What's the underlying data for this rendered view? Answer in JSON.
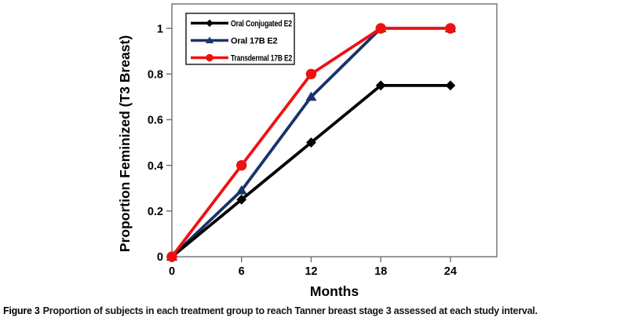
{
  "figure": {
    "caption_label": "Figure 3",
    "caption_text": "Proportion of subjects in each treatment group to reach Tanner breast stage 3 assessed at each study interval."
  },
  "chart_data": {
    "type": "line",
    "title": "",
    "xlabel": "Months",
    "ylabel": "Proportion Feminized (T3 Breast)",
    "x": [
      0,
      6,
      12,
      18,
      24
    ],
    "xtick_labels": [
      "0",
      "6",
      "12",
      "18",
      "24"
    ],
    "ytick_values": [
      0,
      0.2,
      0.4,
      0.6,
      0.8,
      1
    ],
    "ytick_labels": [
      "0",
      "0.2",
      "0.4",
      "0.6",
      "0.8",
      "1"
    ],
    "xlim": [
      0,
      28
    ],
    "ylim": [
      0,
      1.107
    ],
    "grid": false,
    "legend_position": "top-left",
    "legend_border": true,
    "draw_order": [
      1,
      0,
      2
    ],
    "series": [
      {
        "name": "Oral Conjugated E2",
        "color": "#000000",
        "marker": "diamond",
        "values": [
          0,
          0.25,
          0.5,
          0.75,
          0.75
        ]
      },
      {
        "name": "Oral 17B E2",
        "color": "#18336A",
        "marker": "triangle-up",
        "values": [
          0,
          0.29,
          0.7,
          1.0,
          1.0
        ]
      },
      {
        "name": "Transdermal 17B E2",
        "color": "#EE1111",
        "marker": "circle",
        "values": [
          0,
          0.4,
          0.8,
          1.0,
          1.0
        ]
      }
    ],
    "frame_color": "#6e6e6e",
    "legend_border_color": "#2f2f2f"
  }
}
